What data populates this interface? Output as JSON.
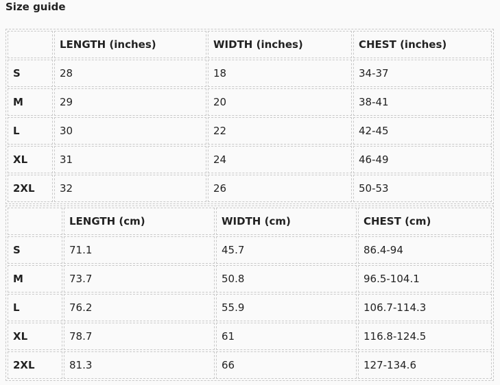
{
  "title": "Size guide",
  "tables": [
    {
      "headers": [
        "",
        "LENGTH (inches)",
        "WIDTH (inches)",
        "CHEST (inches)"
      ],
      "rows": [
        [
          "S",
          "28",
          "18",
          "34-37"
        ],
        [
          "M",
          "29",
          "20",
          "38-41"
        ],
        [
          "L",
          "30",
          "22",
          "42-45"
        ],
        [
          "XL",
          "31",
          "24",
          "46-49"
        ],
        [
          "2XL",
          "32",
          "26",
          "50-53"
        ]
      ]
    },
    {
      "headers": [
        "",
        "LENGTH (cm)",
        "WIDTH (cm)",
        "CHEST (cm)"
      ],
      "rows": [
        [
          "S",
          "71.1",
          "45.7",
          "86.4-94"
        ],
        [
          "M",
          "73.7",
          "50.8",
          "96.5-104.1"
        ],
        [
          "L",
          "76.2",
          "55.9",
          "106.7-114.3"
        ],
        [
          "XL",
          "78.7",
          "61",
          "116.8-124.5"
        ],
        [
          "2XL",
          "81.3",
          "66",
          "127-134.6"
        ]
      ]
    }
  ]
}
